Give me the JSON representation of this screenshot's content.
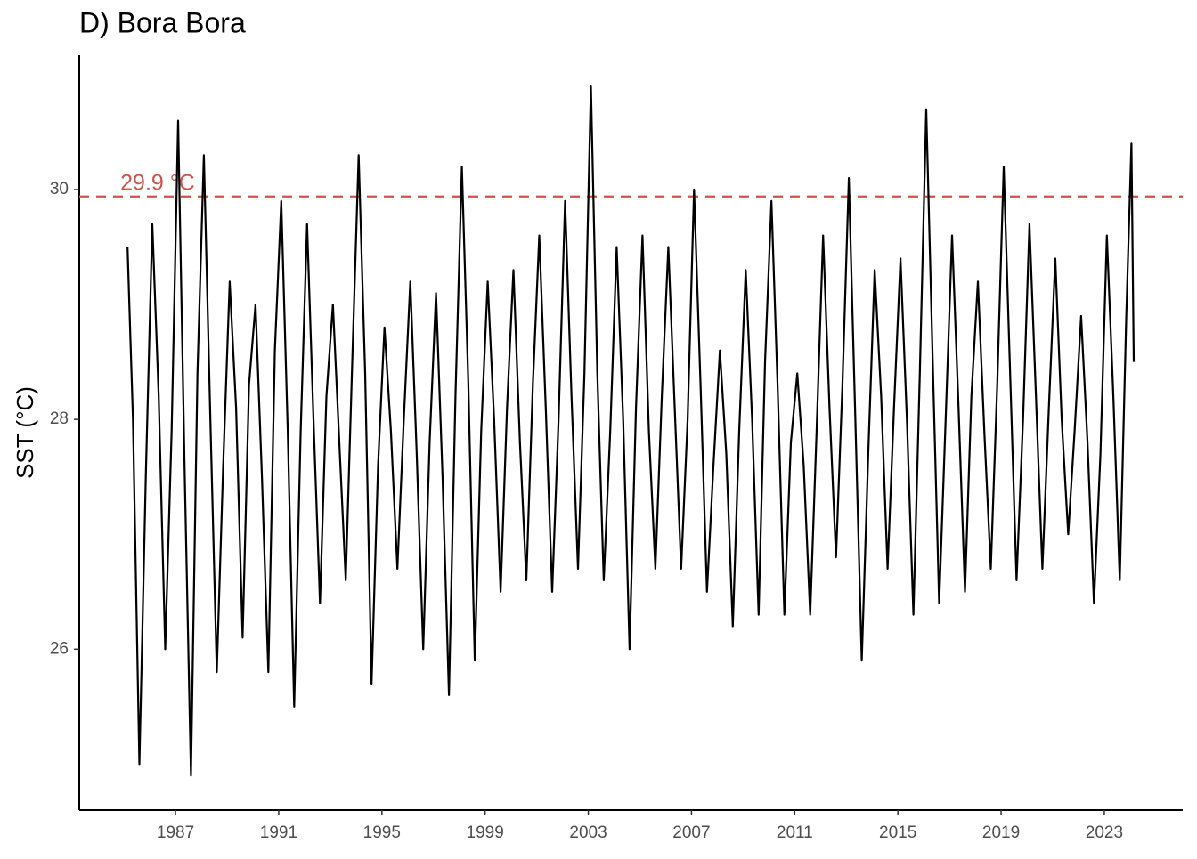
{
  "chart_data": {
    "type": "line",
    "title": "D) Bora Bora",
    "y_label": "SST (°C)",
    "color": "#000000",
    "x": [
      1985.14,
      1985.35,
      1985.6,
      1985.85,
      1986.1,
      1986.35,
      1986.6,
      1986.85,
      1987.1,
      1987.35,
      1987.6,
      1987.85,
      1988.1,
      1988.35,
      1988.6,
      1988.85,
      1989.1,
      1989.35,
      1989.6,
      1989.85,
      1990.1,
      1990.35,
      1990.6,
      1990.85,
      1991.1,
      1991.35,
      1991.6,
      1991.85,
      1992.1,
      1992.35,
      1992.6,
      1992.85,
      1993.1,
      1993.35,
      1993.6,
      1993.85,
      1994.1,
      1994.35,
      1994.6,
      1994.85,
      1995.1,
      1995.35,
      1995.6,
      1995.85,
      1996.1,
      1996.35,
      1996.6,
      1996.85,
      1997.1,
      1997.35,
      1997.6,
      1997.85,
      1998.1,
      1998.35,
      1998.6,
      1998.85,
      1999.1,
      1999.35,
      1999.6,
      1999.85,
      2000.1,
      2000.35,
      2000.6,
      2000.85,
      2001.1,
      2001.35,
      2001.6,
      2001.85,
      2002.1,
      2002.35,
      2002.6,
      2002.85,
      2003.1,
      2003.35,
      2003.6,
      2003.85,
      2004.1,
      2004.35,
      2004.6,
      2004.85,
      2005.1,
      2005.35,
      2005.6,
      2005.85,
      2006.1,
      2006.35,
      2006.6,
      2006.85,
      2007.1,
      2007.35,
      2007.6,
      2007.85,
      2008.1,
      2008.35,
      2008.6,
      2008.85,
      2009.1,
      2009.35,
      2009.6,
      2009.85,
      2010.1,
      2010.35,
      2010.6,
      2010.85,
      2011.1,
      2011.35,
      2011.6,
      2011.85,
      2012.1,
      2012.35,
      2012.6,
      2012.85,
      2013.1,
      2013.35,
      2013.6,
      2013.85,
      2014.1,
      2014.35,
      2014.6,
      2014.85,
      2015.1,
      2015.35,
      2015.6,
      2015.85,
      2016.1,
      2016.35,
      2016.6,
      2016.85,
      2017.1,
      2017.35,
      2017.6,
      2017.85,
      2018.1,
      2018.35,
      2018.6,
      2018.85,
      2019.1,
      2019.35,
      2019.6,
      2019.85,
      2020.1,
      2020.35,
      2020.6,
      2020.85,
      2021.1,
      2021.35,
      2021.6,
      2021.85,
      2022.1,
      2022.35,
      2022.6,
      2022.85,
      2023.1,
      2023.35,
      2023.6,
      2023.85,
      2024.05,
      2024.14
    ],
    "values": [
      29.5,
      28.0,
      25.0,
      27.5,
      29.7,
      28.2,
      26.0,
      27.9,
      30.6,
      27.6,
      24.9,
      28.4,
      30.3,
      28.0,
      25.8,
      27.6,
      29.2,
      28.1,
      26.1,
      28.3,
      29.0,
      27.5,
      25.8,
      28.6,
      29.9,
      27.9,
      25.5,
      27.9,
      29.7,
      28.0,
      26.4,
      28.2,
      29.0,
      27.8,
      26.6,
      28.5,
      30.3,
      28.4,
      25.7,
      27.6,
      28.8,
      27.9,
      26.7,
      28.0,
      29.2,
      27.7,
      26.0,
      27.8,
      29.1,
      27.5,
      25.6,
      28.2,
      30.2,
      28.3,
      25.9,
      27.9,
      29.2,
      28.0,
      26.5,
      28.1,
      29.3,
      27.8,
      26.6,
      28.3,
      29.6,
      28.1,
      26.5,
      28.0,
      29.9,
      28.2,
      26.7,
      28.4,
      30.9,
      28.4,
      26.6,
      27.9,
      29.5,
      28.0,
      26.0,
      28.1,
      29.6,
      27.9,
      26.7,
      28.2,
      29.5,
      28.1,
      26.7,
      28.0,
      30.0,
      28.3,
      26.5,
      27.6,
      28.6,
      27.7,
      26.2,
      27.9,
      29.3,
      28.0,
      26.3,
      28.5,
      29.9,
      28.2,
      26.3,
      27.8,
      28.4,
      27.6,
      26.3,
      27.9,
      29.6,
      28.1,
      26.8,
      28.3,
      30.1,
      28.0,
      25.9,
      27.7,
      29.3,
      28.2,
      26.7,
      28.1,
      29.4,
      28.0,
      26.3,
      28.4,
      30.7,
      28.5,
      26.4,
      28.0,
      29.6,
      28.1,
      26.5,
      28.2,
      29.2,
      27.9,
      26.7,
      28.3,
      30.2,
      28.4,
      26.6,
      28.0,
      29.7,
      28.2,
      26.7,
      28.1,
      29.4,
      28.0,
      27.0,
      27.9,
      28.9,
      27.8,
      26.4,
      27.7,
      29.6,
      28.2,
      26.6,
      28.9,
      30.4,
      28.5
    ],
    "hline": {
      "value": 29.94,
      "label": "29.9 °C",
      "color": "#cd534c"
    },
    "xlim": [
      1983.27,
      2026.04
    ],
    "xticks": [
      1987,
      1991,
      1995,
      1999,
      2003,
      2007,
      2011,
      2015,
      2019,
      2023
    ],
    "ylim": [
      24.6,
      31.17
    ],
    "yticks": [
      26,
      28,
      30
    ],
    "grid": false
  }
}
